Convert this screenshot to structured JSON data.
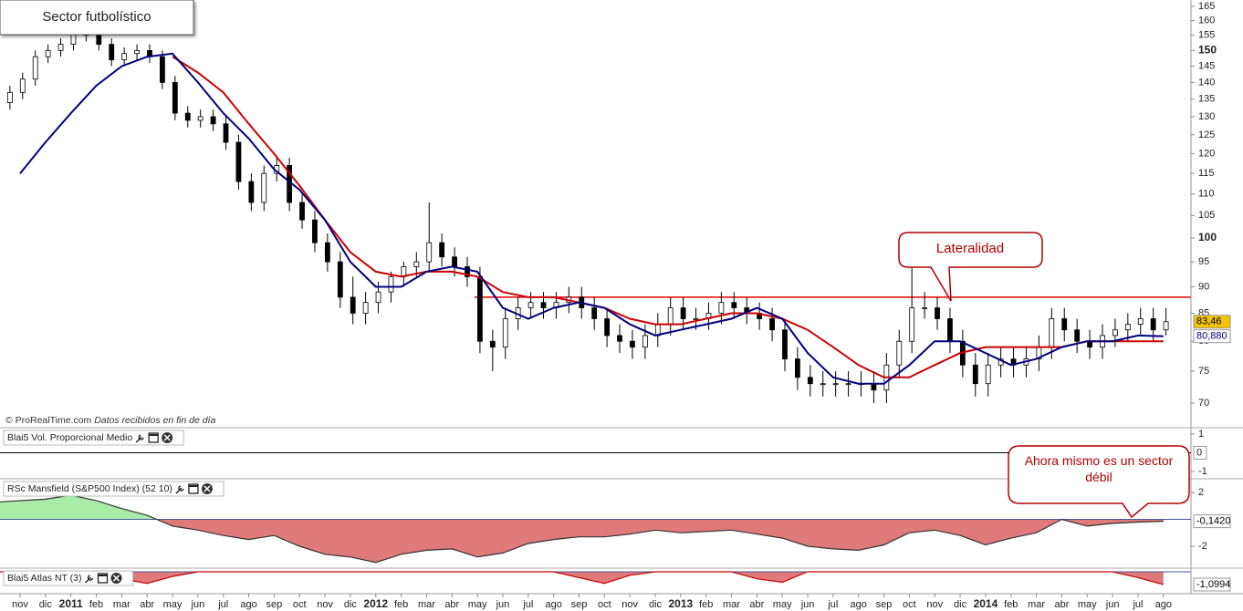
{
  "chart_data": [
    {
      "type": "candlestick",
      "title": "Sector futbolístico",
      "source": "© ProRealTime.com",
      "source_note": "Datos recibidos en fin de día",
      "annotations": [
        "Lateralidad",
        "Ahora mismo es un sector débil"
      ],
      "categories": [
        "nov",
        "dic",
        "2011",
        "feb",
        "mar",
        "abr",
        "may",
        "jun",
        "jul",
        "ago",
        "sep",
        "oct",
        "nov",
        "dic",
        "2012",
        "feb",
        "mar",
        "abr",
        "may",
        "jun",
        "jul",
        "ago",
        "sep",
        "oct",
        "nov",
        "dic",
        "2013",
        "feb",
        "mar",
        "abr",
        "may",
        "jun",
        "jul",
        "ago",
        "sep",
        "oct",
        "nov",
        "dic",
        "2014",
        "feb",
        "mar",
        "abr",
        "may",
        "jun",
        "jul",
        "ago"
      ],
      "open": [
        134,
        137,
        141,
        148,
        150,
        152,
        156,
        155,
        152,
        147,
        149,
        150,
        148,
        140,
        131,
        129,
        130,
        128,
        123,
        113,
        108,
        115,
        117,
        108,
        104,
        99,
        95,
        88,
        85,
        87,
        89,
        92,
        94,
        95,
        99,
        96,
        94,
        92,
        80,
        79,
        84,
        86,
        87,
        86,
        87,
        88,
        86,
        84,
        81,
        80,
        79,
        81,
        83,
        86,
        84,
        84,
        85,
        87,
        86,
        85,
        84,
        82,
        77,
        74,
        73,
        73,
        73,
        73,
        73,
        72,
        76,
        80,
        86,
        86,
        84,
        80,
        76,
        73,
        76,
        77,
        76,
        77,
        79,
        84,
        82,
        80,
        79,
        81,
        82,
        83,
        84,
        82
      ],
      "high": [
        139,
        143,
        150,
        152,
        154,
        158,
        158,
        157,
        154,
        151,
        152,
        152,
        150,
        142,
        133,
        132,
        132,
        130,
        125,
        115,
        117,
        119,
        119,
        110,
        106,
        101,
        97,
        92,
        89,
        91,
        93,
        95,
        97,
        108,
        101,
        98,
        96,
        94,
        82,
        86,
        88,
        89,
        89,
        89,
        90,
        90,
        88,
        86,
        83,
        82,
        83,
        85,
        88,
        88,
        86,
        87,
        89,
        89,
        88,
        87,
        86,
        84,
        79,
        76,
        75,
        75,
        75,
        75,
        75,
        78,
        82,
        94,
        89,
        88,
        86,
        82,
        78,
        78,
        79,
        79,
        79,
        81,
        86,
        86,
        84,
        82,
        83,
        84,
        85,
        86,
        86,
        86
      ],
      "low": [
        132,
        135,
        139,
        146,
        148,
        150,
        153,
        150,
        145,
        145,
        147,
        146,
        138,
        129,
        127,
        127,
        126,
        121,
        111,
        106,
        106,
        113,
        106,
        102,
        97,
        93,
        86,
        83,
        83,
        85,
        87,
        90,
        92,
        93,
        94,
        92,
        90,
        78,
        75,
        77,
        82,
        84,
        84,
        84,
        85,
        84,
        82,
        79,
        78,
        77,
        77,
        79,
        81,
        82,
        82,
        82,
        83,
        84,
        83,
        82,
        80,
        75,
        72,
        71,
        71,
        71,
        71,
        71,
        70,
        70,
        74,
        78,
        84,
        82,
        78,
        74,
        71,
        71,
        74,
        74,
        74,
        75,
        77,
        80,
        78,
        77,
        77,
        79,
        80,
        81,
        80,
        81
      ],
      "close": [
        137,
        141,
        148,
        150,
        152,
        156,
        155,
        152,
        147,
        149,
        150,
        148,
        140,
        131,
        129,
        130,
        128,
        123,
        113,
        108,
        115,
        117,
        108,
        104,
        99,
        95,
        88,
        85,
        87,
        89,
        92,
        94,
        95,
        99,
        96,
        94,
        92,
        80,
        79,
        84,
        86,
        87,
        86,
        87,
        88,
        86,
        84,
        81,
        80,
        79,
        81,
        83,
        86,
        84,
        84,
        85,
        87,
        86,
        85,
        84,
        82,
        77,
        74,
        73,
        73,
        73,
        73,
        73,
        72,
        76,
        80,
        86,
        86,
        84,
        80,
        76,
        73,
        76,
        77,
        76,
        77,
        79,
        84,
        82,
        80,
        79,
        81,
        82,
        83,
        84,
        82,
        83.46
      ],
      "close_label": "83,46",
      "series": [
        {
          "color": "#cc0000",
          "values": [
            null,
            null,
            null,
            null,
            null,
            null,
            148,
            143,
            137,
            128,
            120,
            112,
            104,
            97,
            93,
            92,
            93,
            93,
            92,
            89,
            88,
            88,
            87,
            86,
            84,
            83,
            83,
            84,
            85,
            85,
            84,
            82,
            79,
            76,
            74,
            74,
            76,
            78,
            79,
            79,
            79,
            79,
            80,
            80,
            80,
            80
          ]
        },
        {
          "color": "#000080",
          "values": [
            115,
            123,
            131,
            139,
            145,
            148,
            149,
            140,
            131,
            124,
            116,
            111,
            104,
            95,
            90,
            90,
            93,
            94,
            93,
            86,
            84,
            86,
            87,
            86,
            83,
            81,
            82,
            83,
            84,
            86,
            84,
            78,
            74,
            73,
            73,
            76,
            80,
            80,
            78,
            76,
            77,
            79,
            80,
            80,
            81,
            80.88
          ],
          "last_label": "80,880"
        }
      ],
      "hline": 88,
      "hline_color": "#e00000",
      "log_scale": true,
      "ylim": [
        66.5,
        167.3
      ],
      "yticks": [
        70,
        75,
        80,
        85,
        90,
        95,
        100,
        105,
        110,
        115,
        120,
        125,
        130,
        135,
        140,
        145,
        150,
        155,
        160,
        165
      ]
    },
    {
      "type": "line",
      "title": "Blai5 Vol. Proporcional Medio",
      "color": "#000000",
      "values": [
        0,
        0,
        0,
        0,
        0,
        0,
        0,
        0,
        0,
        0,
        0,
        0,
        0,
        0,
        0,
        0,
        0,
        0,
        0,
        0,
        0,
        0,
        0,
        0,
        0,
        0,
        0,
        0,
        0,
        0,
        0,
        0,
        0,
        0,
        0,
        0,
        0,
        0,
        0,
        0,
        0,
        0,
        0,
        0,
        0,
        0
      ],
      "ylim": [
        -1.34,
        1.29
      ],
      "yticks": [
        1,
        -1
      ]
    },
    {
      "type": "area",
      "title": "RSc Mansfield (S&P500 Index) (52 10)",
      "color": "#333333",
      "positive_color": "#a8eca8",
      "negative_color": "#e07a7a",
      "values": [
        1.3,
        1.5,
        1.8,
        1.4,
        0.8,
        0.3,
        -0.5,
        -0.8,
        -1.2,
        -1.5,
        -1.2,
        -2.0,
        -2.6,
        -2.8,
        -3.2,
        -2.6,
        -2.3,
        -2.2,
        -2.8,
        -2.5,
        -1.8,
        -1.5,
        -1.3,
        -1.3,
        -1.1,
        -0.8,
        -1.0,
        -0.9,
        -0.8,
        -1.1,
        -1.4,
        -2.0,
        -2.2,
        -2.3,
        -1.9,
        -1.0,
        -0.8,
        -1.2,
        -1.9,
        -1.4,
        -1.0,
        0.0,
        -0.5,
        -0.3,
        -0.2,
        -0.142
      ],
      "last_label": "-0,1420",
      "ylim": [
        -3.56,
        2.95
      ],
      "yticks": [
        2,
        -2
      ]
    },
    {
      "type": "area",
      "title": "Blai5 Atlas NT (3)",
      "color": "#cc0000",
      "positive_color": "#a8eca8",
      "negative_color": "#e07a7a",
      "values": [
        0,
        0,
        0,
        0,
        -0.6,
        -1.0,
        -0.4,
        0,
        0,
        0,
        0,
        0,
        0,
        0,
        0,
        0,
        0,
        0,
        0,
        0,
        0,
        0,
        -0.5,
        -1.0,
        -0.3,
        0,
        0,
        0,
        0,
        -0.6,
        -0.9,
        0,
        0,
        0,
        0,
        0,
        0,
        0,
        0,
        0,
        0,
        0,
        0,
        0,
        -0.5,
        -1.0994
      ],
      "last_label": "-1,0994",
      "ylim": [
        -1.81,
        0.24
      ]
    }
  ]
}
